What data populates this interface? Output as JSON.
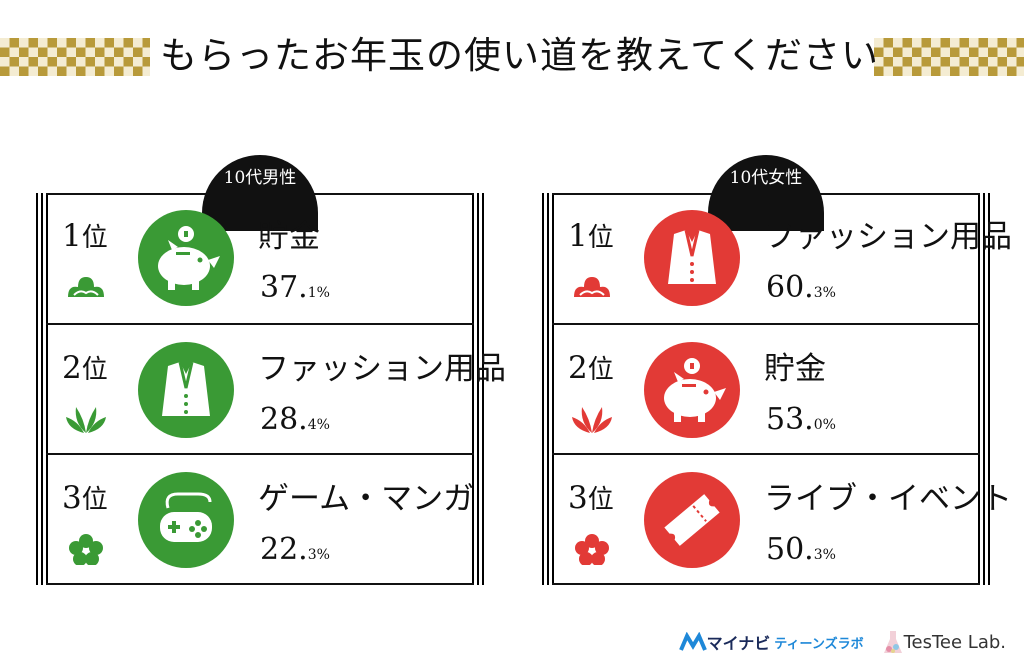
{
  "title": "もらったお年玉の使い道を教えてください",
  "panels": [
    {
      "group": "10代男性",
      "items": [
        {
          "rank": "1",
          "rank_suffix": "位",
          "label": "貯金",
          "value_main": "37.",
          "value_small": "1%",
          "icon": "piggy-bank-icon",
          "emblem": "pine-icon"
        },
        {
          "rank": "2",
          "rank_suffix": "位",
          "label": "ファッション用品",
          "value_main": "28.",
          "value_small": "4%",
          "icon": "jacket-icon",
          "emblem": "bamboo-icon"
        },
        {
          "rank": "3",
          "rank_suffix": "位",
          "label": "ゲーム・マンガ",
          "value_main": "22.",
          "value_small": "3%",
          "icon": "game-controller-icon",
          "emblem": "plum-blossom-icon"
        }
      ]
    },
    {
      "group": "10代女性",
      "items": [
        {
          "rank": "1",
          "rank_suffix": "位",
          "label": "ファッション用品",
          "value_main": "60.",
          "value_small": "3%",
          "icon": "jacket-icon",
          "emblem": "pine-icon"
        },
        {
          "rank": "2",
          "rank_suffix": "位",
          "label": "貯金",
          "value_main": "53.",
          "value_small": "0%",
          "icon": "piggy-bank-icon",
          "emblem": "bamboo-icon"
        },
        {
          "rank": "3",
          "rank_suffix": "位",
          "label": "ライブ・イベント",
          "value_main": "50.",
          "value_small": "3%",
          "icon": "ticket-icon",
          "emblem": "plum-blossom-icon"
        }
      ]
    }
  ],
  "footer": {
    "logo1": "マイナビ",
    "logo1_sub": "ティーンズラボ",
    "logo2": "TesTee Lab."
  },
  "colors": {
    "male": "#3a9a35",
    "female": "#e23a36",
    "gold": "#b89a3a"
  }
}
